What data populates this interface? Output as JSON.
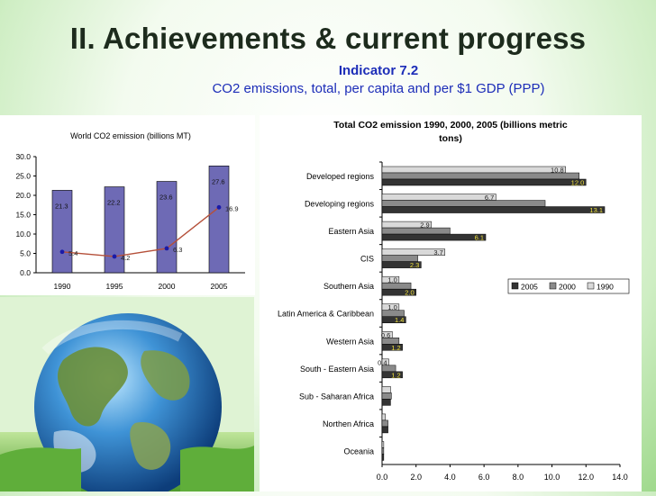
{
  "slide": {
    "title": "II. Achievements & current progress",
    "indicator": "Indicator 7.2",
    "description": "CO2 emissions, total, per capita and per $1 GDP (PPP)"
  },
  "chart_data": [
    {
      "type": "bar",
      "title": "World CO2 emission (billions MT)",
      "categories": [
        "1990",
        "1995",
        "2000",
        "2005"
      ],
      "series": [
        {
          "values": [
            21.3,
            22.2,
            23.6,
            27.6
          ],
          "color": "#6e6ab5"
        },
        {
          "values": [
            5.4,
            4.2,
            6.3,
            16.9
          ],
          "color": "#b5503a",
          "marker_color": "#1a1aa8"
        }
      ],
      "ylim": [
        0,
        30
      ],
      "yticks": [
        "30.0",
        "25.0",
        "20.0",
        "15.0",
        "10.0",
        "5.0",
        "0.0"
      ],
      "grid": false
    },
    {
      "type": "bar",
      "orientation": "horizontal",
      "title": "Total CO2 emission 1990, 2000, 2005 (billions metric tons)",
      "categories": [
        "Developed regions",
        "Developing regions",
        "Eastern Asia",
        "CIS",
        "Southern Asia",
        "Latin America & Caribbean",
        "Western Asia",
        "South - Eastern Asia",
        "Sub - Saharan Africa",
        "Northen Africa",
        "Oceania"
      ],
      "series": [
        {
          "name": "1990",
          "color": "#d9d9d9",
          "values": [
            10.8,
            6.7,
            2.9,
            3.7,
            1.0,
            1.0,
            0.6,
            0.4,
            0.5,
            0.2,
            0.1
          ],
          "labels": [
            "10.8",
            "6.7",
            "2.9",
            "3.7",
            "1.0",
            "1.0",
            "0.6",
            "0.4",
            "",
            "",
            ""
          ]
        },
        {
          "name": "2000",
          "color": "#8a8a8a",
          "values": [
            11.6,
            9.6,
            4.0,
            2.1,
            1.7,
            1.3,
            1.0,
            0.8,
            0.55,
            0.35,
            0.1
          ],
          "labels": [
            "",
            "",
            "",
            "",
            "",
            "",
            "",
            "",
            "",
            "",
            ""
          ]
        },
        {
          "name": "2005",
          "color": "#333333",
          "values": [
            12.0,
            13.1,
            6.1,
            2.3,
            2.0,
            1.4,
            1.2,
            1.2,
            0.5,
            0.35,
            0.1
          ],
          "labels": [
            "12.0",
            "13.1",
            "6.1",
            "2.3",
            "2.0",
            "1.4",
            "1.2",
            "1.2",
            "",
            "",
            ""
          ]
        }
      ],
      "xlim": [
        0,
        14
      ],
      "xticks": [
        "0.0",
        "2.0",
        "4.0",
        "6.0",
        "8.0",
        "10.0",
        "12.0",
        "14.0"
      ],
      "legend": {
        "placement": "right",
        "order": [
          "2005",
          "2000",
          "1990"
        ]
      },
      "grid": false
    }
  ]
}
